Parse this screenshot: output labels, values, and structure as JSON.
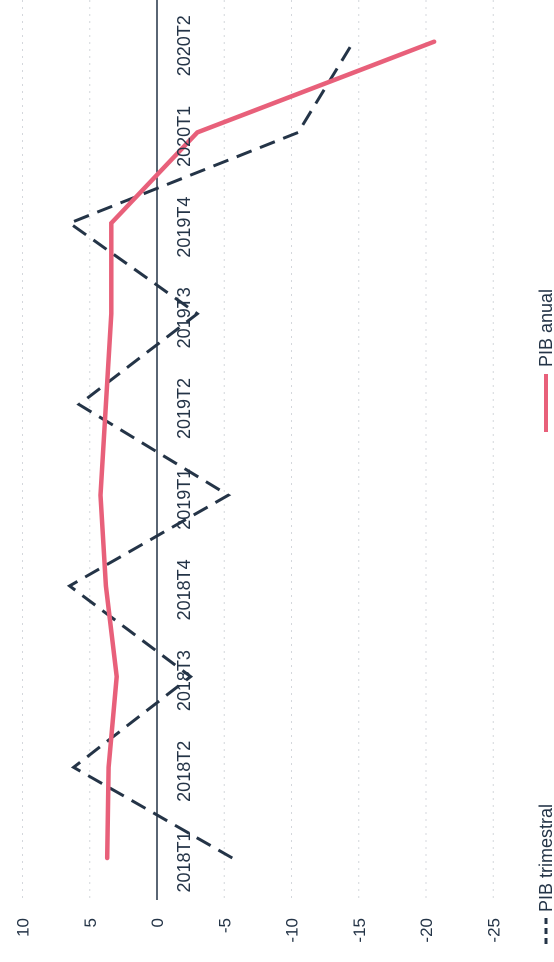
{
  "chart_data": {
    "type": "line",
    "orientation": "rotated-90-clockwise",
    "categories": [
      "2018T1",
      "2018T2",
      "2018T3",
      "2018T4",
      "2019T1",
      "2019T2",
      "2019T3",
      "2019T4",
      "2020T1",
      "2020T2"
    ],
    "series": [
      {
        "name": "PIB trimestral",
        "style": "dashed",
        "color": "#243447",
        "values": [
          -5.6,
          6.2,
          -2.5,
          6.5,
          -5.3,
          5.8,
          -3.0,
          6.5,
          -10.5,
          -14.6
        ]
      },
      {
        "name": "PIB anual",
        "style": "solid",
        "color": "#e8607a",
        "values": [
          3.7,
          3.6,
          3.0,
          3.8,
          4.2,
          3.8,
          3.4,
          3.4,
          -3.0,
          -20.6
        ]
      }
    ],
    "ylim": [
      -25,
      10
    ],
    "yticks": [
      10,
      5,
      0,
      -5,
      -10,
      -15,
      -20,
      -25
    ],
    "grid": true,
    "legend_position": "bottom"
  }
}
